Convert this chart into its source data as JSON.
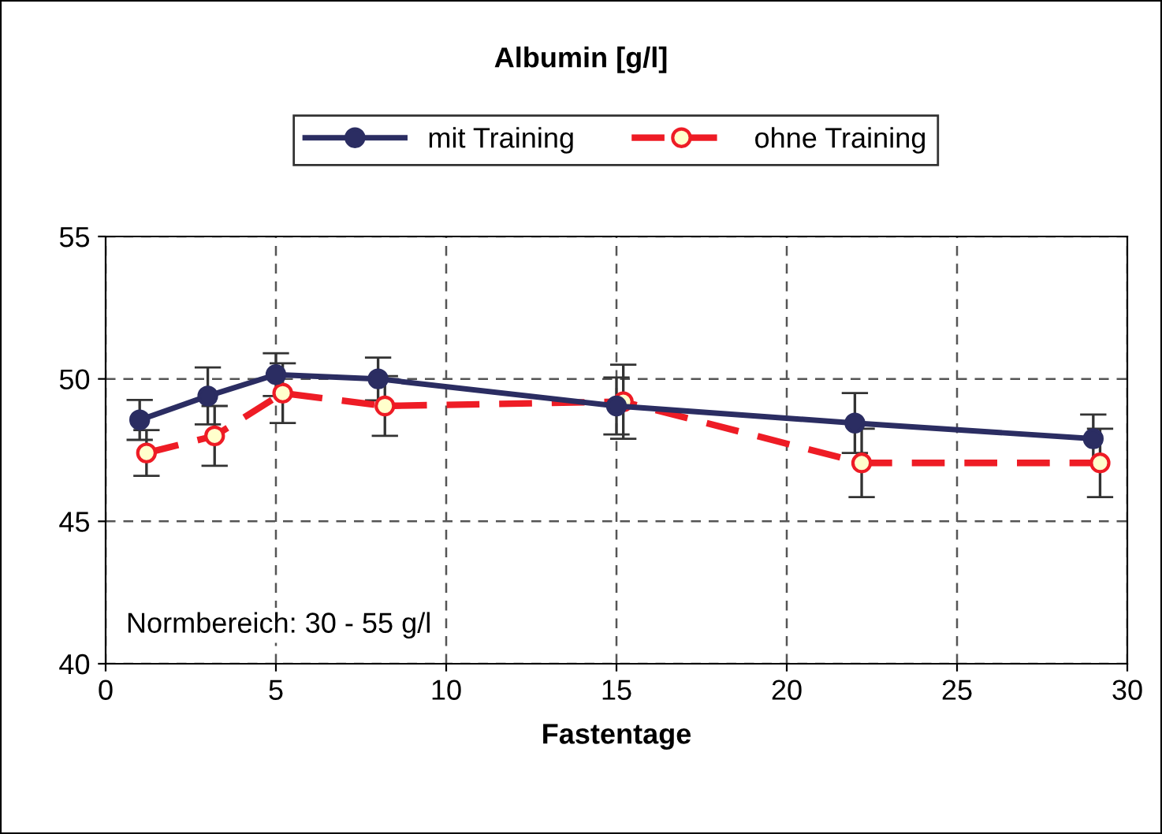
{
  "chart_data": {
    "type": "line",
    "title": "Albumin [g/l]",
    "xlabel": "Fastentage",
    "annotations": [
      "Normbereich: 30 - 55 g/l"
    ],
    "xlim": [
      0,
      30
    ],
    "xticks": [
      0,
      5,
      10,
      15,
      20,
      25,
      30
    ],
    "ylim": [
      40,
      55
    ],
    "yticks": [
      40,
      45,
      50,
      55
    ],
    "grid": true,
    "legend": "top",
    "series": [
      {
        "name": "mit Training",
        "color": "#2b2d62",
        "x": [
          1,
          3,
          5,
          8,
          15,
          22,
          29
        ],
        "values": [
          48.56,
          49.4,
          50.15,
          50.0,
          49.05,
          48.45,
          47.9
        ],
        "errors": [
          0.7,
          1.0,
          0.75,
          0.75,
          1.0,
          1.05,
          0.85
        ],
        "marker": "circle",
        "line_style": "solid"
      },
      {
        "name": "ohne Training",
        "color": "#ee1c25",
        "x": [
          1.2,
          3.2,
          5.2,
          8.2,
          15.2,
          22.2,
          29.2
        ],
        "values": [
          47.4,
          48.0,
          49.5,
          49.05,
          49.2,
          47.05,
          47.05
        ],
        "errors": [
          0.8,
          1.05,
          1.05,
          1.05,
          1.3,
          1.2,
          1.2
        ],
        "marker": "circle",
        "line_style": "dashed"
      }
    ]
  }
}
